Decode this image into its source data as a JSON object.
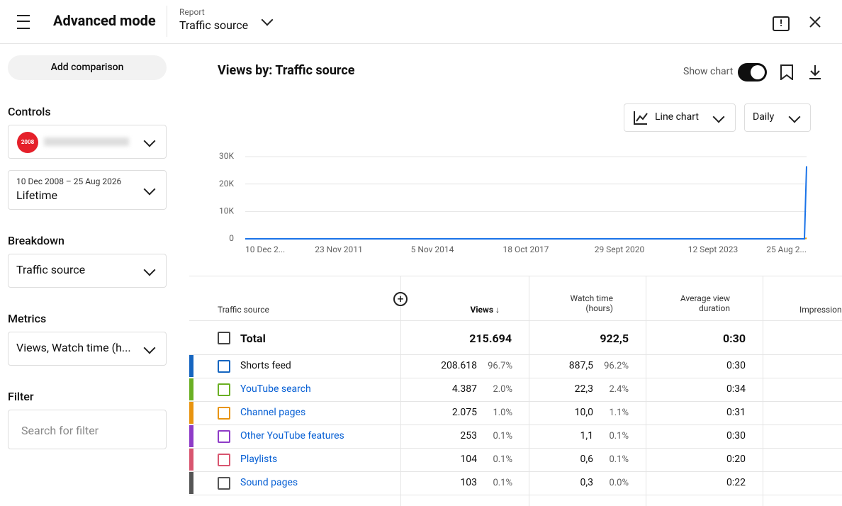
{
  "header": {
    "title": "Advanced mode",
    "report_label": "Report",
    "report_value": "Traffic source"
  },
  "sidebar": {
    "add_comparison": "Add comparison",
    "controls_label": "Controls",
    "channel_logo": "2008",
    "date_range": "10 Dec 2008 – 25 Aug 2026",
    "date_value": "Lifetime",
    "breakdown_label": "Breakdown",
    "breakdown_value": "Traffic source",
    "metrics_label": "Metrics",
    "metrics_value": "Views, Watch time (h...",
    "filter_label": "Filter",
    "filter_placeholder": "Search for filter"
  },
  "main": {
    "title": "Views by: Traffic source",
    "show_chart": "Show chart",
    "chart_type": "Line chart",
    "interval": "Daily"
  },
  "chart_data": {
    "type": "line",
    "x": [
      "10 Dec 2...",
      "23 Nov 2011",
      "5 Nov 2014",
      "18 Oct 2017",
      "29 Sept 2020",
      "12 Sept 2023",
      null,
      "25 Aug 2..."
    ],
    "ylim": [
      0,
      30000
    ],
    "yticks": [
      0,
      {
        "value": 10000,
        "label": "10K"
      },
      {
        "value": 20000,
        "label": "20K"
      },
      {
        "value": 30000,
        "label": "30K"
      }
    ],
    "grid": true,
    "series": [
      {
        "color": "#f29900",
        "values": [
          0,
          0,
          0,
          0,
          0,
          0,
          0,
          300
        ]
      },
      {
        "color": "#1a73e8",
        "values": [
          0,
          0,
          0,
          0,
          0,
          0,
          0,
          26500
        ]
      }
    ]
  },
  "table": {
    "columns": [
      "Traffic source",
      "Views",
      "Watch time (hours)",
      "Average view duration",
      "Impressions"
    ],
    "total": [
      "Total",
      "215.694",
      "922,5",
      "0:30"
    ],
    "rows": [
      {
        "color": "#1565c0",
        "name": "Shorts feed",
        "views": "208.618",
        "views_pct": "96.7%",
        "watch": "887,5",
        "watch_pct": "96.2%",
        "avg": "0:30"
      },
      {
        "color": "#6aaf23",
        "name": "YouTube search",
        "views": "4.387",
        "views_pct": "2.0%",
        "watch": "22,3",
        "watch_pct": "2.4%",
        "avg": "0:34"
      },
      {
        "color": "#e8940f",
        "name": "Channel pages",
        "views": "2.075",
        "views_pct": "1.0%",
        "watch": "10,0",
        "watch_pct": "1.1%",
        "avg": "0:31"
      },
      {
        "color": "#8e3bc7",
        "name": "Other YouTube features",
        "views": "253",
        "views_pct": "0.1%",
        "watch": "1,1",
        "watch_pct": "0.1%",
        "avg": "0:30"
      },
      {
        "color": "#d8556f",
        "name": "Playlists",
        "views": "104",
        "views_pct": "0.1%",
        "watch": "0,6",
        "watch_pct": "0.1%",
        "avg": "0:20"
      },
      {
        "color": "#555555",
        "name": "Sound pages",
        "views": "103",
        "views_pct": "0.1%",
        "watch": "0,3",
        "watch_pct": "0.0%",
        "avg": "0:22"
      }
    ]
  }
}
